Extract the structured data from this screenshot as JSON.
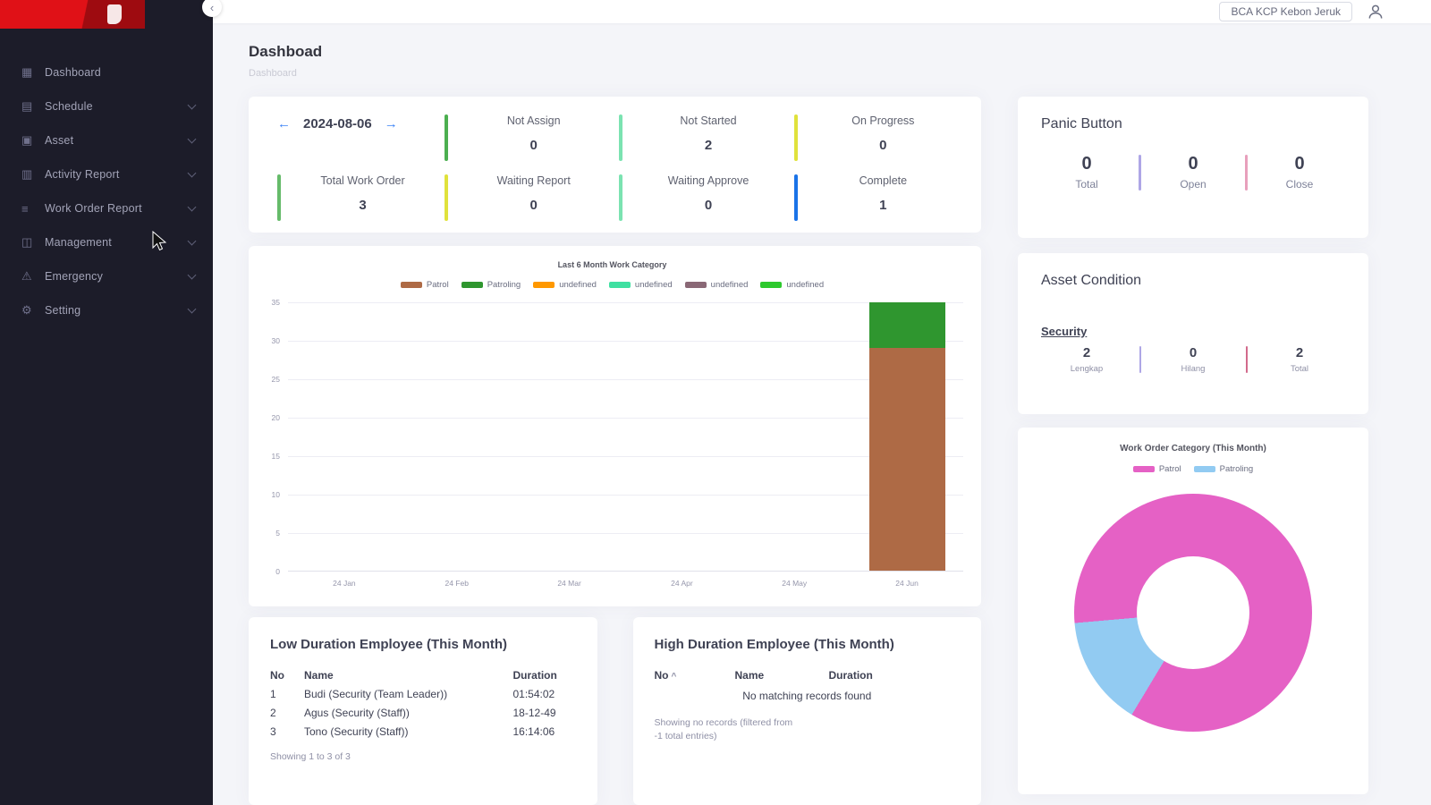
{
  "sidebar": {
    "items": [
      {
        "label": "Dashboard",
        "icon": "dashboard-icon",
        "has_submenu": false
      },
      {
        "label": "Schedule",
        "icon": "schedule-icon",
        "has_submenu": true
      },
      {
        "label": "Asset",
        "icon": "asset-icon",
        "has_submenu": true
      },
      {
        "label": "Activity Report",
        "icon": "activity-report-icon",
        "has_submenu": true
      },
      {
        "label": "Work Order Report",
        "icon": "work-order-report-icon",
        "has_submenu": true
      },
      {
        "label": "Management",
        "icon": "management-icon",
        "has_submenu": true
      },
      {
        "label": "Emergency",
        "icon": "emergency-icon",
        "has_submenu": true
      },
      {
        "label": "Setting",
        "icon": "setting-icon",
        "has_submenu": true
      }
    ]
  },
  "icons": {
    "dashboard": "▦",
    "schedule": "▤",
    "asset": "▣",
    "activity_report": "▥",
    "work_order_report": "≡",
    "management": "◫",
    "emergency": "⚠",
    "setting": "⚙",
    "collapse": "‹",
    "arrow_left": "←",
    "arrow_right": "→",
    "sort_caret": "^"
  },
  "topbar": {
    "branch_name": "BCA KCP Kebon Jeruk"
  },
  "page": {
    "title": "Dashboad",
    "breadcrumb": "Dashboard"
  },
  "work_order_summary": {
    "date": "2024-08-06",
    "stats": [
      {
        "label": "Not Assign",
        "value": "0",
        "accent": "#4caf50"
      },
      {
        "label": "Not Started",
        "value": "2",
        "accent": "#7be3b1"
      },
      {
        "label": "On Progress",
        "value": "0",
        "accent": "#e0e23c"
      },
      {
        "label": "Total Work Order",
        "value": "3",
        "accent": "#66bb6a"
      },
      {
        "label": "Waiting Report",
        "value": "0",
        "accent": "#e0e23c"
      },
      {
        "label": "Waiting Approve",
        "value": "0",
        "accent": "#7be3b1"
      },
      {
        "label": "Complete",
        "value": "1",
        "accent": "#1a73e8"
      }
    ]
  },
  "panic_button": {
    "title": "Panic Button",
    "stats": [
      {
        "value": "0",
        "label": "Total"
      },
      {
        "value": "0",
        "label": "Open"
      },
      {
        "value": "0",
        "label": "Close"
      }
    ]
  },
  "asset_condition": {
    "title": "Asset Condition",
    "group": "Security",
    "stats": [
      {
        "value": "2",
        "label": "Lengkap"
      },
      {
        "value": "0",
        "label": "Hilang"
      },
      {
        "value": "2",
        "label": "Total"
      }
    ]
  },
  "low_duration": {
    "title": "Low Duration Employee (This Month)",
    "columns": [
      "No",
      "Name",
      "Duration"
    ],
    "rows": [
      {
        "no": "1",
        "name": "Budi (Security (Team Leader))",
        "duration": "01:54:02"
      },
      {
        "no": "2",
        "name": "Agus (Security (Staff))",
        "duration": "18-12-49"
      },
      {
        "no": "3",
        "name": "Tono (Security (Staff))",
        "duration": "16:14:06"
      }
    ],
    "footer": "Showing 1 to 3 of 3"
  },
  "high_duration": {
    "title": "High Duration Employee (This Month)",
    "columns": [
      "No",
      "Name",
      "Duration"
    ],
    "empty_message": "No matching records found",
    "footer": "Showing no records (filtered from -1 total entries)"
  },
  "chart_data": [
    {
      "type": "bar",
      "title": "Last 6 Month Work Category",
      "stacked": true,
      "categories": [
        "24 Jan",
        "24 Feb",
        "24 Mar",
        "24 Apr",
        "24 May",
        "24 Jun"
      ],
      "series": [
        {
          "name": "Patrol",
          "color": "#ae6a45",
          "values": [
            0,
            0,
            0,
            0,
            0,
            29
          ]
        },
        {
          "name": "Patroling",
          "color": "#2f962f",
          "values": [
            0,
            0,
            0,
            0,
            0,
            6
          ]
        },
        {
          "name": "undefined",
          "color": "#ff9800",
          "values": [
            0,
            0,
            0,
            0,
            0,
            0
          ]
        },
        {
          "name": "undefined",
          "color": "#3fe0a1",
          "values": [
            0,
            0,
            0,
            0,
            0,
            0
          ]
        },
        {
          "name": "undefined",
          "color": "#8a6876",
          "values": [
            0,
            0,
            0,
            0,
            0,
            0
          ]
        },
        {
          "name": "undefined",
          "color": "#2dc92d",
          "values": [
            0,
            0,
            0,
            0,
            0,
            0
          ]
        }
      ],
      "ylim": [
        0,
        35
      ],
      "ytick_step": 5,
      "grid": true,
      "legend_position": "top"
    },
    {
      "type": "pie",
      "donut": true,
      "title": "Work Order Category (This Month)",
      "labels": [
        "Patrol",
        "Patroling"
      ],
      "values": [
        85,
        15
      ],
      "colors": [
        "#e561c5",
        "#92cbf2"
      ],
      "rotation_deg": 265,
      "legend_position": "top"
    }
  ]
}
